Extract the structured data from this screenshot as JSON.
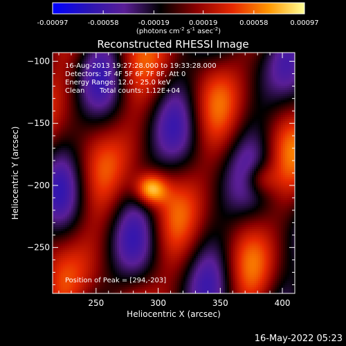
{
  "colorbar": {
    "tick_labels": [
      "-0.00097",
      "-0.00058",
      "-0.00019",
      "0.00019",
      "0.00058",
      "0.00097"
    ],
    "tick_values": [
      -0.00097,
      -0.00058,
      -0.00019,
      0.00019,
      0.00058,
      0.00097
    ],
    "range": [
      -0.00097,
      0.00097
    ],
    "units_prefix": "(photons cm",
    "units_exp1": "-2",
    "units_mid": " s",
    "units_exp2": "-1",
    "units_mid2": " asec",
    "units_exp3": "-2",
    "units_suffix": ")"
  },
  "chart_data": {
    "type": "heatmap",
    "title": "Reconstructed RHESSI Image",
    "xlabel": "Heliocentric X (arcsec)",
    "ylabel": "Heliocentric Y (arcsec)",
    "xlim": [
      215,
      410
    ],
    "ylim": [
      -287,
      -93
    ],
    "x_ticks": [
      250,
      300,
      350,
      400
    ],
    "y_ticks": [
      -100,
      -150,
      -200,
      -250
    ],
    "x_tick_labels": [
      "250",
      "300",
      "350",
      "400"
    ],
    "y_tick_labels": [
      "−100",
      "−150",
      "−200",
      "−250"
    ],
    "peak": [
      294,
      -203
    ],
    "colormap": [
      "#0000ff",
      "#2a14b4",
      "#5a1e96",
      "#000000",
      "#8c0000",
      "#e62800",
      "#ff9600",
      "#ffff96"
    ],
    "annotations": {
      "line1": "16-Aug-2013 19:27:28.000 to 19:33:28.000",
      "line2": "Detectors: 3F 4F 5F 6F 7F 8F, Att 0",
      "line3": "Energy Range: 12.0 - 25.0 keV",
      "line4_a": "Clean",
      "line4_b": "Total counts: 1.12E+04",
      "peak_label": "Position of Peak = [294,-203]"
    }
  },
  "footer": {
    "timestamp": "16-May-2022 05:23"
  }
}
